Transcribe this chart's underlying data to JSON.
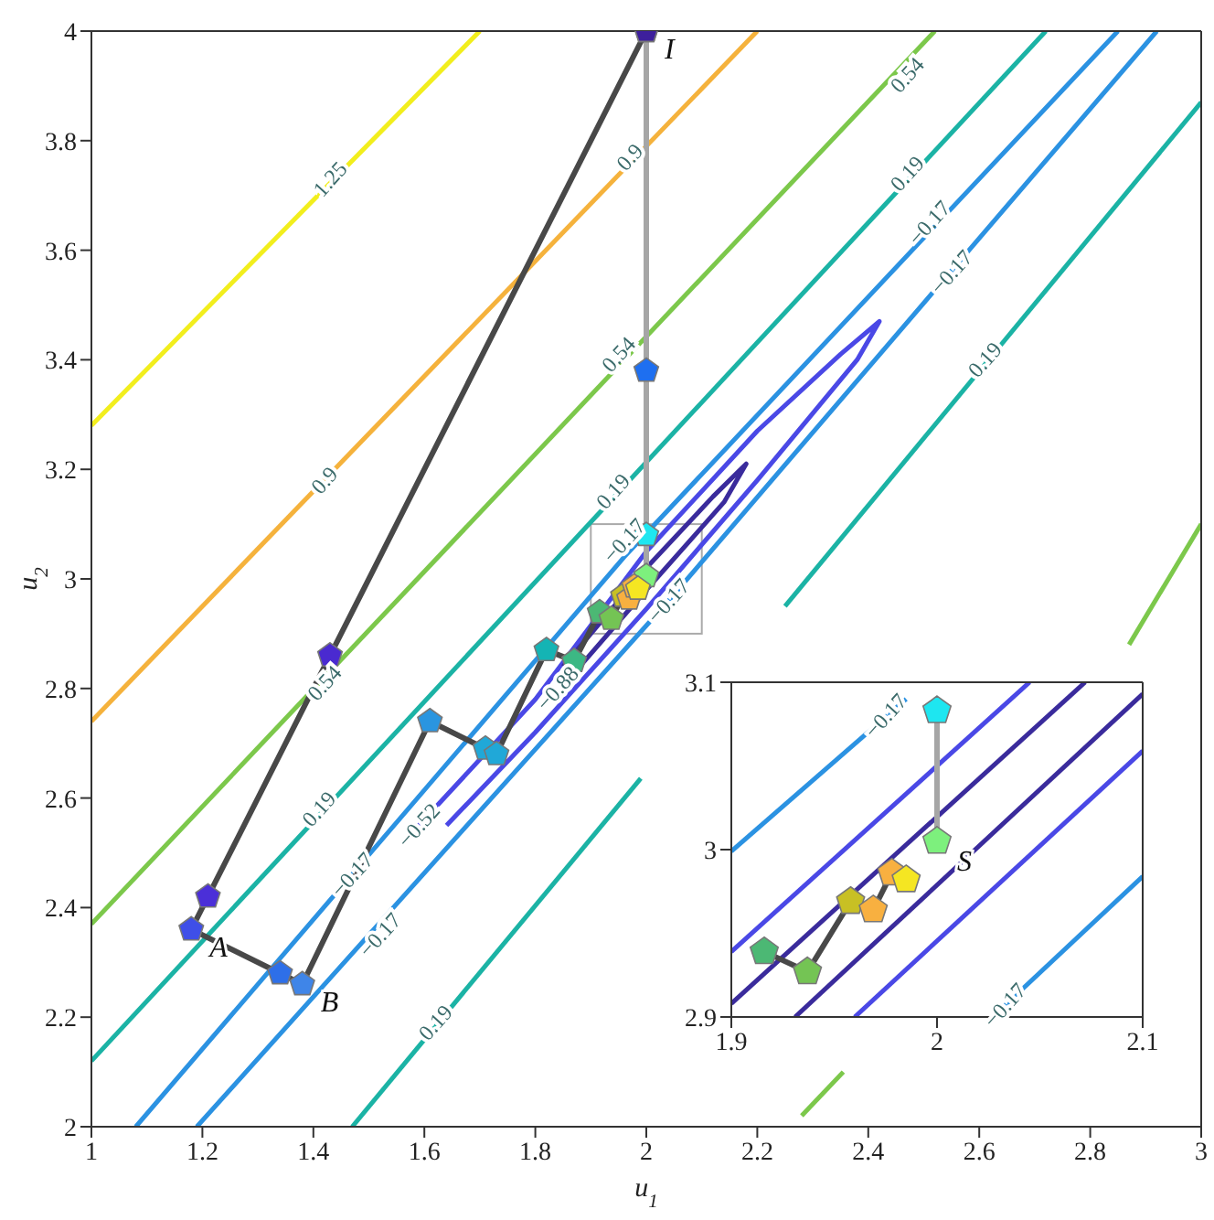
{
  "chart_data": [
    {
      "type": "line",
      "xlabel": "u$_{1}$",
      "ylabel": "u$_{2}$",
      "xlim": [
        1,
        3
      ],
      "ylim": [
        2,
        4
      ],
      "xticks": [
        1,
        1.2,
        1.4,
        1.6,
        1.8,
        2,
        2.2,
        2.4,
        2.6,
        2.8,
        3
      ],
      "yticks": [
        2,
        2.2,
        2.4,
        2.6,
        2.8,
        3,
        3.2,
        3.4,
        3.6,
        3.8,
        4
      ],
      "series": [
        {
          "color": "#f2ee1d",
          "marker": "none",
          "x": [
            1,
            1.7
          ],
          "values": [
            3.28,
            4
          ]
        },
        {
          "color": "#f5b23c",
          "marker": "none",
          "x": [
            1,
            2.2
          ],
          "values": [
            2.74,
            4
          ]
        },
        {
          "color": "#7cc84b",
          "marker": "none",
          "x": [
            1,
            2.52
          ],
          "values": [
            2.37,
            4
          ]
        },
        {
          "color": "#7cc84b",
          "marker": "none",
          "x": [
            2.28,
            2.355
          ],
          "values": [
            2.02,
            2.1
          ]
        },
        {
          "color": "#7cc84b",
          "marker": "none",
          "x": [
            2.87,
            3
          ],
          "values": [
            2.88,
            3.1
          ]
        },
        {
          "color": "#1bb3a5",
          "marker": "none",
          "x": [
            1,
            2.72
          ],
          "values": [
            2.12,
            4
          ]
        },
        {
          "color": "#1bb3a5",
          "marker": "none",
          "x": [
            1.47,
            1.99
          ],
          "values": [
            2,
            2.636
          ]
        },
        {
          "color": "#1bb3a5",
          "marker": "none",
          "x": [
            2.25,
            3
          ],
          "values": [
            2.95,
            3.87
          ]
        },
        {
          "color": "#2b92e2",
          "marker": "none",
          "x": [
            1.08,
            1.96,
            2.85
          ],
          "values": [
            2,
            3.04,
            4
          ]
        },
        {
          "color": "#2b92e2",
          "marker": "none",
          "x": [
            1.19,
            2.04,
            2.92
          ],
          "values": [
            2,
            2.96,
            4
          ]
        },
        {
          "color": "#4a48e6",
          "marker": "none",
          "x": [
            1.59,
            1.8,
            2,
            2.2,
            2.35,
            2.42,
            2.38,
            2.2,
            2,
            1.8,
            1.64
          ],
          "values": [
            2.55,
            2.78,
            3.05,
            3.27,
            3.41,
            3.47,
            3.4,
            3.18,
            2.945,
            2.72,
            2.55
          ]
        },
        {
          "color": "#3a2b9c",
          "marker": "none",
          "x": [
            1.85,
            2,
            2.12,
            2.18,
            2.14,
            2,
            1.88
          ],
          "values": [
            2.84,
            3.02,
            3.15,
            3.21,
            3.14,
            2.98,
            2.84
          ]
        },
        {
          "color": "#a6a6a6",
          "marker": "circle",
          "x": [
            2,
            2,
            2,
            2
          ],
          "values": [
            4,
            3.38,
            3.08,
            3.005
          ],
          "colors": [
            "#3d1f9c",
            "#1e6ff0",
            "#1ee6f0",
            "#7df07d"
          ],
          "value_labels": [
            "I",
            null,
            null,
            null
          ]
        },
        {
          "color": "#484848",
          "marker": "circle",
          "x": [
            2,
            1.43,
            1.21,
            1.18,
            1.34,
            1.38,
            1.61,
            1.71,
            1.73,
            1.82,
            1.87,
            1.916,
            1.937,
            1.958,
            1.969,
            1.978,
            1.985
          ],
          "values": [
            4,
            2.86,
            2.42,
            2.36,
            2.28,
            2.26,
            2.74,
            2.69,
            2.68,
            2.87,
            2.85,
            2.939,
            2.927,
            2.969,
            2.964,
            2.986,
            2.982
          ],
          "colors": [
            "#3d1f9c",
            "#4a2ad0",
            "#4b2fd8",
            "#3f4fe8",
            "#2e6fe8",
            "#3f85e8",
            "#2a95e0",
            "#20a8d8",
            "#20a8d8",
            "#14b4b4",
            "#3cb884",
            "#4cb874",
            "#74c454",
            "#c8c024",
            "#f8b040",
            "#f8b040",
            "#f5e622"
          ],
          "value_labels": [
            null,
            null,
            null,
            "A",
            null,
            "B",
            null,
            null,
            null,
            null,
            null,
            null,
            null,
            null,
            null,
            null,
            null
          ]
        }
      ],
      "annotations": [
        {
          "text": "1.25",
          "x": 1.43,
          "y": 3.73
        },
        {
          "text": "0.9",
          "x": 1.42,
          "y": 3.18
        },
        {
          "text": "0.9",
          "x": 1.97,
          "y": 3.77
        },
        {
          "text": "0.54",
          "x": 2.47,
          "y": 3.92
        },
        {
          "text": "0.54",
          "x": 1.95,
          "y": 3.41
        },
        {
          "text": "0.54",
          "x": 1.42,
          "y": 2.81
        },
        {
          "text": "0.19",
          "x": 2.47,
          "y": 3.74
        },
        {
          "text": "0.19",
          "x": 1.94,
          "y": 3.16
        },
        {
          "text": "0.19",
          "x": 1.41,
          "y": 2.58
        },
        {
          "text": "0.19",
          "x": 1.62,
          "y": 2.19
        },
        {
          "text": "0.19",
          "x": 2.61,
          "y": 3.4
        },
        {
          "text": "−0.17",
          "x": 2.51,
          "y": 3.65
        },
        {
          "text": "−0.17",
          "x": 1.47,
          "y": 2.46
        },
        {
          "text": "−0.17",
          "x": 1.96,
          "y": 3.07
        },
        {
          "text": "−0.17",
          "x": 2.55,
          "y": 3.56
        },
        {
          "text": "−0.17",
          "x": 1.52,
          "y": 2.35
        },
        {
          "text": "−0.17",
          "x": 2.04,
          "y": 2.96
        },
        {
          "text": "−0.52",
          "x": 1.59,
          "y": 2.55
        },
        {
          "text": "−0.88",
          "x": 1.84,
          "y": 2.8
        }
      ]
    },
    {
      "type": "line",
      "xlim": [
        1.9,
        2.1
      ],
      "ylim": [
        2.9,
        3.1
      ],
      "xticks": [
        1.9,
        2,
        2.1
      ],
      "yticks": [
        2.9,
        3,
        3.1
      ],
      "series": [
        {
          "color": "#2b92e2",
          "marker": "none",
          "x": [
            1.9,
            1.985
          ],
          "values": [
            2.999,
            3.09
          ]
        },
        {
          "color": "#4a48e6",
          "marker": "none",
          "x": [
            1.9,
            2.045
          ],
          "values": [
            2.939,
            3.1
          ]
        },
        {
          "color": "#3a2b9c",
          "marker": "none",
          "x": [
            1.9,
            2.072
          ],
          "values": [
            2.908,
            3.1
          ]
        },
        {
          "color": "#3a2b9c",
          "marker": "none",
          "x": [
            1.931,
            2.1
          ],
          "values": [
            2.9,
            3.093
          ]
        },
        {
          "color": "#4a48e6",
          "marker": "none",
          "x": [
            1.96,
            2.1
          ],
          "values": [
            2.9,
            3.059
          ]
        },
        {
          "color": "#2b92e2",
          "marker": "none",
          "x": [
            2.027,
            2.1
          ],
          "values": [
            2.9,
            2.984
          ]
        },
        {
          "color": "#a6a6a6",
          "marker": "circle",
          "x": [
            2,
            2
          ],
          "values": [
            3.083,
            3.005
          ],
          "colors": [
            "#1ee6f0",
            "#7df07d"
          ],
          "value_labels": [
            null,
            "S"
          ]
        },
        {
          "color": "#484848",
          "marker": "circle",
          "x": [
            1.916,
            1.937,
            1.958,
            1.969,
            1.978,
            1.985
          ],
          "values": [
            2.939,
            2.927,
            2.969,
            2.964,
            2.986,
            2.982
          ],
          "colors": [
            "#4cb874",
            "#74c454",
            "#c8c024",
            "#f8b040",
            "#f8b040",
            "#f5e622"
          ]
        }
      ],
      "annotations": [
        {
          "text": "−0.17",
          "x": 1.975,
          "y": 3.08
        },
        {
          "text": "−0.17",
          "x": 2.033,
          "y": 2.907
        }
      ]
    }
  ]
}
